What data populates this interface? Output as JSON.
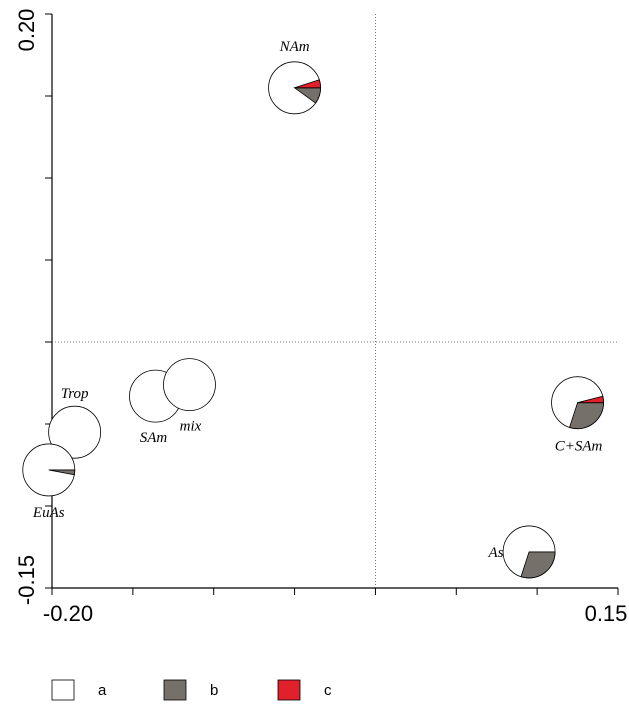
{
  "chart_data": {
    "type": "scatter",
    "title": "",
    "xlabel": "",
    "ylabel": "",
    "xlim": [
      -0.2,
      0.15
    ],
    "ylim": [
      -0.15,
      0.2
    ],
    "x_tick_labels": [
      "-0.20",
      "0.15"
    ],
    "y_tick_labels": [
      "0.20",
      "-0.15"
    ],
    "reference_lines": {
      "x": 0,
      "y": 0,
      "style": "dotted"
    },
    "grid": false,
    "legend": {
      "position": "bottom",
      "items": [
        {
          "key": "a",
          "label": "a",
          "color": "#ffffff"
        },
        {
          "key": "b",
          "label": "b",
          "color": "#76706a"
        },
        {
          "key": "c",
          "label": "c",
          "color": "#e0212b"
        }
      ]
    },
    "points": [
      {
        "label": "NAm",
        "x": -0.05,
        "y": 0.155,
        "a": 0.85,
        "b": 0.1,
        "c": 0.05
      },
      {
        "label": "Trop",
        "x": -0.186,
        "y": -0.055,
        "a": 1.0,
        "b": 0,
        "c": 0
      },
      {
        "label": "EuAs",
        "x": -0.202,
        "y": -0.078,
        "a": 0.97,
        "b": 0.03,
        "c": 0
      },
      {
        "label": "SAm",
        "x": -0.136,
        "y": -0.033,
        "a": 1.0,
        "b": 0,
        "c": 0
      },
      {
        "label": "mix",
        "x": -0.115,
        "y": -0.026,
        "a": 1.0,
        "b": 0,
        "c": 0
      },
      {
        "label": "C+SAm",
        "x": 0.125,
        "y": -0.037,
        "a": 0.66,
        "b": 0.3,
        "c": 0.04
      },
      {
        "label": "As",
        "x": 0.095,
        "y": -0.128,
        "a": 0.7,
        "b": 0.3,
        "c": 0
      }
    ]
  }
}
